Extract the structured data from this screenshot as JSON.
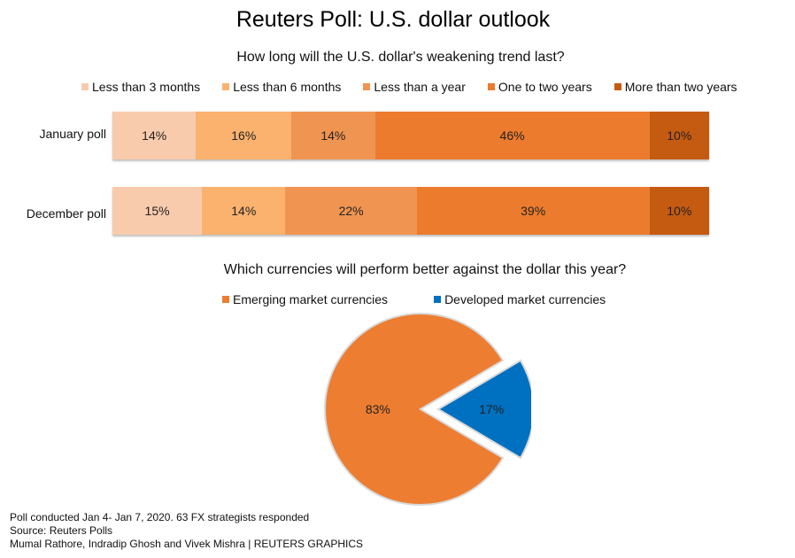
{
  "chart_data": [
    {
      "type": "bar",
      "stacked": true,
      "orientation": "horizontal",
      "title": "Reuters Poll: U.S. dollar outlook",
      "subtitle": "How long will the U.S. dollar's weakening trend last?",
      "categories": [
        "January poll",
        "December poll"
      ],
      "series": [
        {
          "name": "Less than 3 months",
          "color": "#f8cbad",
          "values": [
            14,
            15
          ],
          "labels": [
            "14%",
            "15%"
          ]
        },
        {
          "name": "Less than 6 months",
          "color": "#fbb26e",
          "values": [
            16,
            14
          ],
          "labels": [
            "16%",
            "14%"
          ]
        },
        {
          "name": "Less than a year",
          "color": "#f09452",
          "values": [
            14,
            22
          ],
          "labels": [
            "14%",
            "22%"
          ]
        },
        {
          "name": "One to two years",
          "color": "#ec7b2d",
          "values": [
            46,
            39
          ],
          "labels": [
            "46%",
            "39%"
          ]
        },
        {
          "name": "More than two years",
          "color": "#c55a11",
          "values": [
            10,
            10
          ],
          "labels": [
            "10%",
            "10%"
          ]
        }
      ],
      "legend_position": "top",
      "grid": false
    },
    {
      "type": "pie",
      "subtitle": "Which currencies will perform better against the dollar this year?",
      "slices": [
        {
          "name": "Emerging market currencies",
          "value": 83,
          "label": "83%",
          "color": "#ed7d31"
        },
        {
          "name": "Developed market currencies",
          "value": 17,
          "label": "17%",
          "color": "#0070c0",
          "exploded": true
        }
      ],
      "legend_position": "top"
    }
  ],
  "footer": {
    "line1": "Poll conducted Jan 4- Jan 7, 2020. 63  FX strategists responded",
    "line2": "Source: Reuters Polls",
    "line3": "Mumal Rathore, Indradip Ghosh and Vivek Mishra  | REUTERS GRAPHICS"
  }
}
